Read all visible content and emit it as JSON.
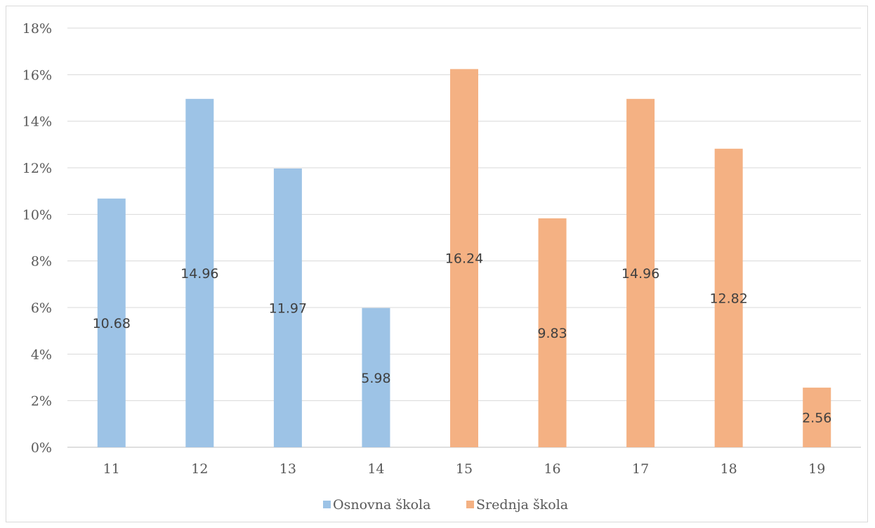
{
  "chart_data": {
    "type": "bar",
    "categories": [
      "11",
      "12",
      "13",
      "14",
      "15",
      "16",
      "17",
      "18",
      "19"
    ],
    "series": [
      {
        "name": "Osnovna škola",
        "color": "#9dc3e6",
        "values": [
          10.68,
          14.96,
          11.97,
          5.98,
          null,
          null,
          null,
          null,
          null
        ]
      },
      {
        "name": "Srednja škola",
        "color": "#f4b183",
        "values": [
          null,
          null,
          null,
          null,
          16.24,
          9.83,
          14.96,
          12.82,
          2.56
        ]
      }
    ],
    "data_labels": [
      "10.68",
      "14.96",
      "11.97",
      "5.98",
      "16.24",
      "9.83",
      "14.96",
      "12.82",
      "2.56"
    ],
    "y_tick_labels": [
      "0%",
      "2%",
      "4%",
      "6%",
      "8%",
      "10%",
      "12%",
      "14%",
      "16%",
      "18%"
    ],
    "ylim": [
      0,
      18
    ],
    "ylabel": "",
    "xlabel": "",
    "title": "",
    "grid": true,
    "legend_position": "bottom"
  }
}
